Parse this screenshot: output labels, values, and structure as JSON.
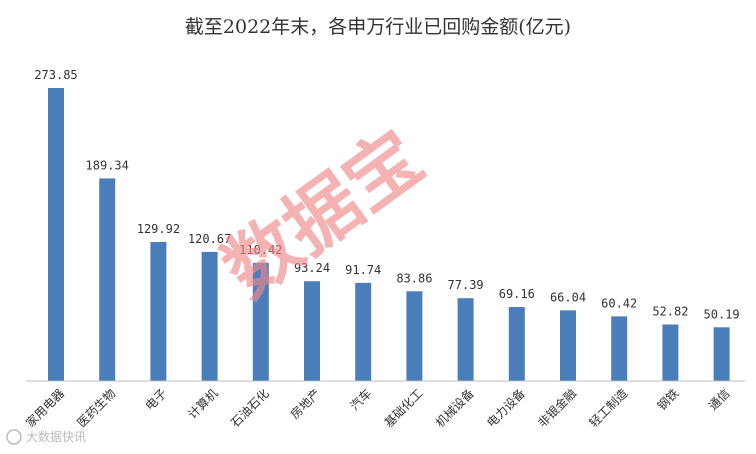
{
  "chart_data": {
    "type": "bar",
    "title": "截至2022年末，各申万行业已回购金额(亿元)",
    "xlabel": "",
    "ylabel": "",
    "categories": [
      "家用电器",
      "医药生物",
      "电子",
      "计算机",
      "石油石化",
      "房地产",
      "汽车",
      "基础化工",
      "机械设备",
      "电力设备",
      "非银金融",
      "轻工制造",
      "钢铁",
      "通信"
    ],
    "values": [
      273.85,
      189.34,
      129.92,
      120.67,
      110.42,
      93.24,
      91.74,
      83.86,
      77.39,
      69.16,
      66.04,
      60.42,
      52.82,
      50.19
    ],
    "value_labels": [
      "273.85",
      "189.34",
      "129.92",
      "120.67",
      "110.42",
      "93.24",
      "91.74",
      "83.86",
      "77.39",
      "69.16",
      "66.04",
      "60.42",
      "52.82",
      "50.19"
    ],
    "ylim": [
      0,
      273.85
    ],
    "grid": false,
    "legend": "none",
    "bar_color": "#4a7ebb"
  },
  "watermark": {
    "text": "数据宝",
    "color": "#f08a8a"
  },
  "brand": {
    "text": "大数据快讯"
  }
}
